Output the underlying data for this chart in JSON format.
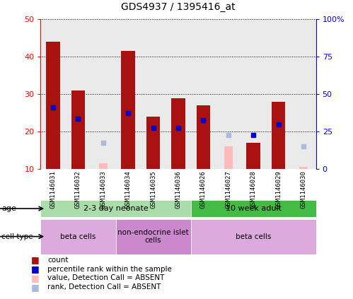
{
  "title": "GDS4937 / 1395416_at",
  "samples": [
    "GSM1146031",
    "GSM1146032",
    "GSM1146033",
    "GSM1146034",
    "GSM1146035",
    "GSM1146036",
    "GSM1146026",
    "GSM1146027",
    "GSM1146028",
    "GSM1146029",
    "GSM1146030"
  ],
  "count_values": [
    44.0,
    31.0,
    null,
    41.5,
    24.0,
    29.0,
    27.0,
    null,
    17.0,
    28.0,
    null
  ],
  "rank_values": [
    26.5,
    23.5,
    null,
    25.0,
    21.0,
    21.0,
    23.0,
    null,
    19.0,
    22.0,
    null
  ],
  "absent_count": [
    null,
    null,
    11.5,
    null,
    null,
    null,
    null,
    16.0,
    null,
    null,
    10.5
  ],
  "absent_rank": [
    null,
    null,
    17.0,
    null,
    null,
    null,
    null,
    19.0,
    null,
    null,
    16.0
  ],
  "ylim_left": [
    10,
    50
  ],
  "ylim_right": [
    0,
    100
  ],
  "yticks_left": [
    10,
    20,
    30,
    40,
    50
  ],
  "yticks_right": [
    0,
    25,
    50,
    75,
    100
  ],
  "ytick_right_labels": [
    "0",
    "25",
    "50",
    "75",
    "100%"
  ],
  "age_groups": [
    {
      "label": "2-3 day neonate",
      "start": 0,
      "end": 6,
      "color": "#aaddaa"
    },
    {
      "label": "10 week adult",
      "start": 6,
      "end": 11,
      "color": "#44bb44"
    }
  ],
  "cell_type_groups": [
    {
      "label": "beta cells",
      "start": 0,
      "end": 3,
      "color": "#ddaadd"
    },
    {
      "label": "non-endocrine islet\ncells",
      "start": 3,
      "end": 6,
      "color": "#cc88cc"
    },
    {
      "label": "beta cells",
      "start": 6,
      "end": 11,
      "color": "#ddaadd"
    }
  ],
  "bar_color": "#aa1111",
  "rank_color": "#0000cc",
  "absent_bar_color": "#ffbbbb",
  "absent_rank_color": "#aabbdd",
  "bar_width": 0.55,
  "absent_bar_width": 0.35,
  "col_bg_color": "#cccccc",
  "col_bg_alpha": 0.4
}
